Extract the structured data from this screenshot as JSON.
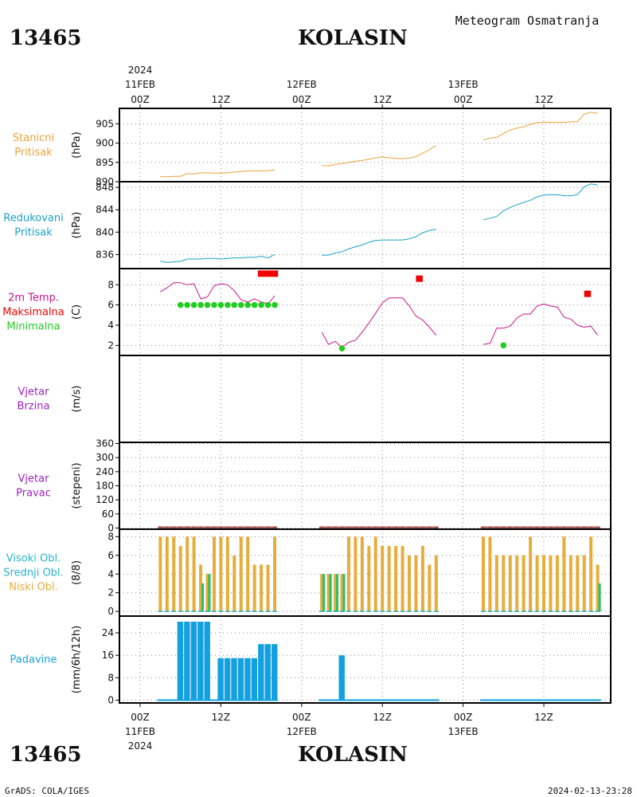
{
  "header": {
    "station_id": "13465",
    "station_name": "KOLASIN",
    "title": "Meteogram Osmatranja"
  },
  "footer": {
    "left": "GrADS: COLA/IGES",
    "right": "2024-02-13-23:28"
  },
  "colors": {
    "pressure": "#e8a33a",
    "reduced": "#1aa1c9",
    "temp": "#c8168c",
    "tmax": "#f00000",
    "tmin": "#22cc22",
    "wind": "#a020c0",
    "wind_dir": "#a05050",
    "cloud_high": "#27b3c9",
    "cloud_mid": "#27c06a",
    "cloud_low": "#e6ad3c",
    "precip": "#12a0e0"
  },
  "time_axis": {
    "year": "2024",
    "ticks": [
      {
        "t": 0,
        "label": "00Z",
        "date": "11FEB"
      },
      {
        "t": 12,
        "label": "12Z",
        "date": ""
      },
      {
        "t": 24,
        "label": "00Z",
        "date": "12FEB"
      },
      {
        "t": 36,
        "label": "12Z",
        "date": ""
      },
      {
        "t": 48,
        "label": "00Z",
        "date": "13FEB"
      },
      {
        "t": 60,
        "label": "12Z",
        "date": ""
      }
    ]
  },
  "chart_data": [
    {
      "type": "line",
      "panel_label": [
        "Stanicni",
        "Pritisak"
      ],
      "ylabel": "(hPa)",
      "ylim": [
        890,
        909
      ],
      "yticks": [
        890,
        895,
        900,
        905
      ],
      "series": [
        {
          "x": [
            3,
            4,
            5,
            6,
            7,
            8,
            9,
            10,
            11,
            12,
            13,
            14,
            15,
            16,
            17,
            18,
            19,
            20
          ],
          "y": [
            891.3,
            891.3,
            891.4,
            891.4,
            892.1,
            892.0,
            892.3,
            892.3,
            892.2,
            892.2,
            892.3,
            892.5,
            892.6,
            892.8,
            892.8,
            892.8,
            892.8,
            893.1
          ]
        },
        {
          "x": [
            27,
            28,
            29,
            30,
            31,
            32,
            33,
            34,
            35,
            36,
            37,
            38,
            39,
            40,
            41,
            42,
            43,
            44
          ],
          "y": [
            894.2,
            894.1,
            894.5,
            894.7,
            895.0,
            895.3,
            895.5,
            895.8,
            896.2,
            896.4,
            896.2,
            896.0,
            896.0,
            896.1,
            896.5,
            897.4,
            898.3,
            899.4
          ]
        },
        {
          "x": [
            51,
            52,
            53,
            54,
            55,
            56,
            57,
            58,
            59,
            60,
            61,
            62,
            63,
            64,
            65,
            66,
            67,
            68
          ],
          "y": [
            900.8,
            901.3,
            901.5,
            902.5,
            903.4,
            903.9,
            904.2,
            904.9,
            905.3,
            905.4,
            905.4,
            905.4,
            905.4,
            905.5,
            905.6,
            907.5,
            908.0,
            907.7
          ]
        }
      ]
    },
    {
      "type": "line",
      "panel_label": [
        "Redukovani",
        "Pritisak"
      ],
      "ylabel": "(hPa)",
      "ylim": [
        833.5,
        849
      ],
      "yticks": [
        836,
        840,
        844,
        848
      ],
      "series": [
        {
          "x": [
            3,
            4,
            5,
            6,
            7,
            8,
            9,
            10,
            11,
            12,
            13,
            14,
            15,
            16,
            17,
            18,
            19,
            20
          ],
          "y": [
            834.8,
            834.6,
            834.7,
            834.8,
            835.2,
            835.2,
            835.2,
            835.3,
            835.3,
            835.2,
            835.3,
            835.4,
            835.4,
            835.5,
            835.5,
            835.7,
            835.4,
            836.0
          ]
        },
        {
          "x": [
            27,
            28,
            29,
            30,
            31,
            32,
            33,
            34,
            35,
            36,
            37,
            38,
            39,
            40,
            41,
            42,
            43,
            44
          ],
          "y": [
            835.9,
            835.9,
            836.3,
            836.5,
            837.0,
            837.4,
            837.7,
            838.2,
            838.5,
            838.6,
            838.6,
            838.6,
            838.6,
            838.8,
            839.2,
            839.9,
            840.3,
            840.5
          ]
        },
        {
          "x": [
            51,
            52,
            53,
            54,
            55,
            56,
            57,
            58,
            59,
            60,
            61,
            62,
            63,
            64,
            65,
            66,
            67,
            68
          ],
          "y": [
            842.2,
            842.5,
            842.8,
            843.8,
            844.4,
            844.9,
            845.3,
            845.7,
            846.3,
            846.6,
            846.7,
            846.7,
            846.5,
            846.5,
            846.7,
            848.1,
            848.6,
            848.4
          ]
        }
      ]
    },
    {
      "type": "line",
      "panel_label": [
        "2m Temp.",
        "Maksimalna",
        "Minimalna"
      ],
      "ylabel": "(C)",
      "ylim": [
        1,
        9.6
      ],
      "yticks": [
        2,
        4,
        6,
        8
      ],
      "series": [
        {
          "name": "2m Temp.",
          "x": [
            3,
            4,
            5,
            6,
            7,
            8,
            9,
            10,
            11,
            12,
            13,
            14,
            15,
            16,
            17,
            18,
            19,
            20
          ],
          "y": [
            7.3,
            7.7,
            8.2,
            8.2,
            8.0,
            8.1,
            6.6,
            6.8,
            7.9,
            8.1,
            8.0,
            7.4,
            6.5,
            6.3,
            6.6,
            6.3,
            6.1,
            6.9
          ]
        },
        {
          "name": "2m Temp.",
          "x": [
            27,
            28,
            29,
            30,
            31,
            32,
            33,
            34,
            35,
            36,
            37,
            38,
            39,
            40,
            41,
            42,
            43,
            44
          ],
          "y": [
            3.3,
            2.1,
            2.4,
            1.8,
            2.3,
            2.5,
            3.3,
            4.2,
            5.2,
            6.2,
            6.7,
            6.7,
            6.7,
            5.9,
            4.9,
            4.5,
            3.8,
            3.0
          ]
        },
        {
          "name": "2m Temp.",
          "x": [
            51,
            52,
            53,
            54,
            55,
            56,
            57,
            58,
            59,
            60,
            61,
            62,
            63,
            64,
            65,
            66,
            67,
            68
          ],
          "y": [
            2.1,
            2.2,
            3.7,
            3.7,
            3.9,
            4.7,
            5.1,
            5.1,
            5.9,
            6.1,
            5.9,
            5.8,
            4.8,
            4.6,
            4.0,
            3.8,
            3.9,
            3.0
          ]
        }
      ],
      "tmax": [
        {
          "x": 19,
          "y": 9.1,
          "w": 3
        },
        {
          "x": 41.5,
          "y": 8.6,
          "w": 1
        },
        {
          "x": 66.5,
          "y": 7.1,
          "w": 1
        }
      ],
      "tmin": [
        {
          "x": [
            6,
            7,
            8,
            9,
            10,
            11,
            12,
            13,
            14,
            15,
            16,
            17,
            18,
            19,
            20
          ],
          "y": 6.0
        },
        {
          "x": [
            30
          ],
          "y": 1.7
        },
        {
          "x": [
            54
          ],
          "y": 2.0
        }
      ]
    },
    {
      "type": "line",
      "panel_label": [
        "Vjetar",
        "Brzina"
      ],
      "ylabel": "(m/s)",
      "series": []
    },
    {
      "type": "bar",
      "panel_label": [
        "Vjetar",
        "Pravac"
      ],
      "ylabel": "(stepeni)",
      "ylim": [
        -5,
        365
      ],
      "yticks": [
        0,
        60,
        120,
        180,
        240,
        300,
        360
      ],
      "calm_segments": [
        [
          3,
          20
        ],
        [
          27,
          44
        ],
        [
          51,
          68
        ]
      ],
      "calm_value": 0
    },
    {
      "type": "bar",
      "panel_label": [
        "Visoki Obl.",
        "Srednji Obl.",
        "Niski Obl."
      ],
      "ylabel": "(8/8)",
      "ylim": [
        -0.5,
        8.8
      ],
      "yticks": [
        0,
        2,
        4,
        6,
        8
      ],
      "low": {
        "x": [
          3,
          4,
          5,
          6,
          7,
          8,
          9,
          10,
          11,
          12,
          13,
          14,
          15,
          16,
          17,
          18,
          19,
          20,
          27,
          28,
          29,
          30,
          31,
          32,
          33,
          34,
          35,
          36,
          37,
          38,
          39,
          40,
          41,
          42,
          43,
          44,
          51,
          52,
          53,
          54,
          55,
          56,
          57,
          58,
          59,
          60,
          61,
          62,
          63,
          64,
          65,
          66,
          67,
          68
        ],
        "y": [
          8,
          8,
          8,
          7,
          8,
          8,
          5,
          4,
          8,
          8,
          8,
          6,
          8,
          8,
          5,
          5,
          5,
          8,
          4,
          4,
          4,
          4,
          8,
          8,
          8,
          7,
          8,
          7,
          7,
          7,
          7,
          6,
          6,
          7,
          5,
          6,
          8,
          8,
          6,
          6,
          6,
          6,
          6,
          8,
          6,
          6,
          6,
          6,
          8,
          6,
          6,
          6,
          8,
          5
        ]
      },
      "mid": {
        "x": [
          9,
          10,
          27,
          28,
          29,
          30,
          68
        ],
        "y": [
          3,
          4,
          4,
          4,
          4,
          4,
          3
        ]
      },
      "high": {
        "x": [],
        "y": []
      }
    },
    {
      "type": "bar",
      "panel_label": [
        "Padavine"
      ],
      "ylabel": "(mm/6h/12h)",
      "ylim": [
        -1,
        30
      ],
      "yticks": [
        0,
        8,
        16,
        24
      ],
      "bars": [
        {
          "x": [
            6,
            7,
            8,
            9,
            10
          ],
          "y": 28
        },
        {
          "x": [
            12,
            13,
            14,
            15,
            16,
            17
          ],
          "y": 15
        },
        {
          "x": [
            18,
            19,
            20
          ],
          "y": 20
        },
        {
          "x": [
            30
          ],
          "y": 16
        }
      ],
      "baseline_segments": [
        [
          3,
          20
        ],
        [
          27,
          44
        ],
        [
          51,
          68
        ]
      ]
    }
  ]
}
